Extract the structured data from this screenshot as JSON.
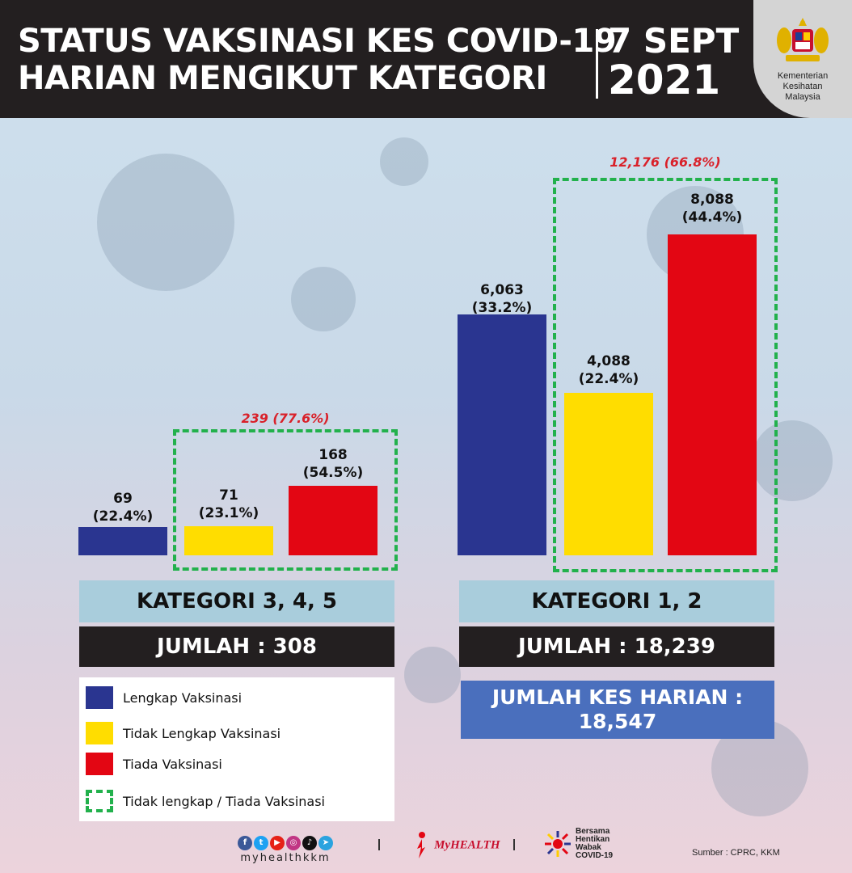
{
  "header": {
    "title_line1": "STATUS VAKSINASI KES COVID-19",
    "title_line2": "HARIAN MENGIKUT KATEGORI",
    "date_line1": "7 SEPT",
    "date_line2": "2021",
    "ministry": [
      "Kementerian",
      "Kesihatan",
      "Malaysia"
    ]
  },
  "colors": {
    "lengkap": "#2a3590",
    "tidak_lengkap": "#ffdd00",
    "tiada": "#e30613",
    "dashed": "#22b14c",
    "highlight_text": "#d9212a"
  },
  "chart_data": [
    {
      "type": "bar",
      "category_group": "KATEGORI 3, 4, 5",
      "categories": [
        "Lengkap Vaksinasi",
        "Tidak Lengkap Vaksinasi",
        "Tiada Vaksinasi"
      ],
      "values": [
        69,
        71,
        168
      ],
      "percent_labels": [
        "(22.4%)",
        "(23.1%)",
        "(54.5%)"
      ],
      "value_labels": [
        "69",
        "71",
        "168"
      ],
      "highlight_total": "239 (77.6%)",
      "total_label": "JUMLAH : 308"
    },
    {
      "type": "bar",
      "category_group": "KATEGORI 1, 2",
      "categories": [
        "Lengkap Vaksinasi",
        "Tidak Lengkap Vaksinasi",
        "Tiada Vaksinasi"
      ],
      "values": [
        6063,
        4088,
        8088
      ],
      "percent_labels": [
        "(33.2%)",
        "(22.4%)",
        "(44.4%)"
      ],
      "value_labels": [
        "6,063",
        "4,088",
        "8,088"
      ],
      "highlight_total": "12,176 (66.8%)",
      "total_label": "JUMLAH : 18,239"
    }
  ],
  "grand_total": {
    "line1": "JUMLAH KES HARIAN :",
    "line2": "18,547"
  },
  "legend": [
    {
      "label": "Lengkap Vaksinasi",
      "swatch": "lengkap"
    },
    {
      "label": "Tidak Lengkap Vaksinasi",
      "swatch": "tidak_lengkap"
    },
    {
      "label": "Tiada Vaksinasi",
      "swatch": "tiada"
    },
    {
      "label": "Tidak lengkap / Tiada Vaksinasi",
      "swatch": "dashed"
    }
  ],
  "footer": {
    "handle": "myhealthkkm",
    "myhealth": "MyHEALTH",
    "bersama": [
      "Bersama",
      "Hentikan",
      "Wabak",
      "COVID-19"
    ],
    "source": "Sumber : CPRC, KKM"
  }
}
